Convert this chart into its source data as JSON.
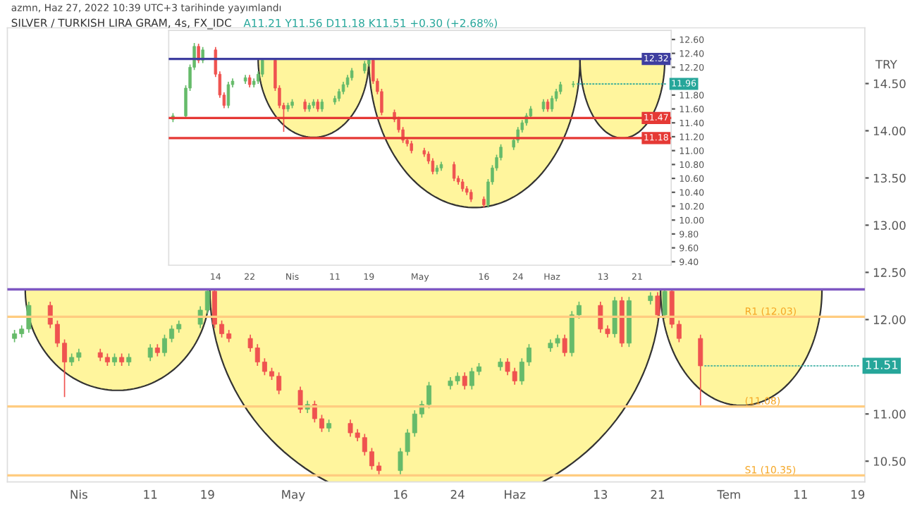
{
  "chart_data": [
    {
      "type": "candlestick",
      "title": "SILVER / TURKISH LIRA GRAM, 4s, FX_IDC",
      "subtitle": "A11.21 Y11.56 D11.18 K11.51 +0.30 (+2.68%)",
      "annotations": [
        "azmn, Haz 27, 2022 10:39 UTC+3 tarihinde yayımlandı",
        {
          "text": "11.96",
          "x": "2022-06-06",
          "y": 11.96
        }
      ],
      "x": [
        "2022-03-04",
        "2022-03-07",
        "2022-03-08",
        "2022-03-09",
        "2022-03-10",
        "2022-03-11",
        "2022-03-14",
        "2022-03-15",
        "2022-03-16",
        "2022-03-17",
        "2022-03-18",
        "2022-03-21",
        "2022-03-22",
        "2022-03-23",
        "2022-03-24",
        "2022-03-25",
        "2022-03-28",
        "2022-03-29",
        "2022-03-30",
        "2022-03-31",
        "2022-04-01",
        "2022-04-04",
        "2022-04-05",
        "2022-04-06",
        "2022-04-07",
        "2022-04-08",
        "2022-04-11",
        "2022-04-12",
        "2022-04-13",
        "2022-04-14",
        "2022-04-15",
        "2022-04-18",
        "2022-04-19",
        "2022-04-20",
        "2022-04-21",
        "2022-04-22",
        "2022-04-25",
        "2022-04-26",
        "2022-04-27",
        "2022-04-28",
        "2022-04-29",
        "2022-05-02",
        "2022-05-03",
        "2022-05-04",
        "2022-05-05",
        "2022-05-06",
        "2022-05-09",
        "2022-05-10",
        "2022-05-11",
        "2022-05-12",
        "2022-05-13",
        "2022-05-16",
        "2022-05-17",
        "2022-05-18",
        "2022-05-19",
        "2022-05-20",
        "2022-05-23",
        "2022-05-24",
        "2022-05-25",
        "2022-05-26",
        "2022-05-27",
        "2022-05-30",
        "2022-05-31",
        "2022-06-01",
        "2022-06-02",
        "2022-06-03",
        "2022-06-06"
      ],
      "ohlc": [
        [
          11.45,
          11.54,
          11.41,
          11.5
        ],
        [
          11.5,
          11.94,
          11.46,
          11.9
        ],
        [
          11.9,
          12.24,
          11.86,
          12.2
        ],
        [
          12.2,
          12.55,
          12.16,
          12.5
        ],
        [
          12.5,
          12.54,
          12.26,
          12.3
        ],
        [
          12.3,
          12.49,
          12.26,
          12.45
        ],
        [
          12.45,
          12.49,
          12.06,
          12.1
        ],
        [
          12.1,
          12.14,
          11.76,
          11.8
        ],
        [
          11.8,
          11.84,
          11.61,
          11.65
        ],
        [
          11.65,
          11.99,
          11.61,
          11.95
        ],
        [
          11.95,
          12.04,
          11.91,
          12.0
        ],
        [
          12.0,
          12.09,
          11.96,
          12.05
        ],
        [
          12.05,
          12.09,
          11.91,
          11.95
        ],
        [
          11.95,
          12.04,
          11.91,
          12.0
        ],
        [
          12.0,
          12.14,
          11.96,
          12.1
        ],
        [
          12.1,
          12.32,
          12.06,
          12.3
        ],
        [
          12.3,
          12.32,
          11.86,
          11.9
        ],
        [
          11.9,
          11.94,
          11.61,
          11.65
        ],
        [
          11.65,
          11.69,
          11.27,
          11.6
        ],
        [
          11.6,
          11.69,
          11.56,
          11.65
        ],
        [
          11.65,
          11.74,
          11.61,
          11.7
        ],
        [
          11.7,
          11.74,
          11.56,
          11.6
        ],
        [
          11.6,
          11.69,
          11.56,
          11.65
        ],
        [
          11.65,
          11.74,
          11.61,
          11.7
        ],
        [
          11.7,
          11.74,
          11.56,
          11.6
        ],
        [
          11.6,
          11.74,
          11.56,
          11.7
        ],
        [
          11.7,
          11.79,
          11.66,
          11.75
        ],
        [
          11.75,
          11.89,
          11.71,
          11.85
        ],
        [
          11.85,
          11.99,
          11.81,
          11.95
        ],
        [
          11.95,
          12.09,
          11.91,
          12.05
        ],
        [
          12.05,
          12.19,
          12.01,
          12.15
        ],
        [
          12.15,
          12.29,
          12.11,
          12.25
        ],
        [
          12.25,
          12.32,
          12.21,
          12.3
        ],
        [
          12.3,
          12.32,
          11.96,
          12.0
        ],
        [
          12.0,
          12.04,
          11.81,
          11.85
        ],
        [
          11.85,
          11.89,
          11.51,
          11.55
        ],
        [
          11.55,
          11.59,
          11.41,
          11.45
        ],
        [
          11.45,
          11.49,
          11.26,
          11.3
        ],
        [
          11.3,
          11.34,
          11.11,
          11.15
        ],
        [
          11.15,
          11.19,
          11.06,
          11.1
        ],
        [
          11.1,
          11.14,
          10.96,
          11.0
        ],
        [
          11.0,
          11.04,
          10.91,
          10.95
        ],
        [
          10.95,
          10.99,
          10.81,
          10.85
        ],
        [
          10.85,
          10.89,
          10.66,
          10.7
        ],
        [
          10.7,
          10.79,
          10.66,
          10.75
        ],
        [
          10.75,
          10.84,
          10.71,
          10.8
        ],
        [
          10.8,
          10.84,
          10.56,
          10.6
        ],
        [
          10.6,
          10.64,
          10.51,
          10.55
        ],
        [
          10.55,
          10.59,
          10.41,
          10.45
        ],
        [
          10.45,
          10.49,
          10.36,
          10.4
        ],
        [
          10.4,
          10.44,
          10.26,
          10.3
        ],
        [
          10.3,
          10.34,
          10.18,
          10.22
        ],
        [
          10.22,
          10.59,
          10.18,
          10.55
        ],
        [
          10.55,
          10.79,
          10.51,
          10.75
        ],
        [
          10.75,
          10.94,
          10.71,
          10.9
        ],
        [
          10.9,
          11.09,
          10.86,
          11.05
        ],
        [
          11.05,
          11.19,
          11.01,
          11.15
        ],
        [
          11.15,
          11.34,
          11.11,
          11.3
        ],
        [
          11.3,
          11.44,
          11.26,
          11.4
        ],
        [
          11.4,
          11.54,
          11.36,
          11.5
        ],
        [
          11.5,
          11.64,
          11.46,
          11.6
        ],
        [
          11.6,
          11.74,
          11.56,
          11.7
        ],
        [
          11.7,
          11.74,
          11.56,
          11.6
        ],
        [
          11.6,
          11.79,
          11.56,
          11.75
        ],
        [
          11.75,
          11.89,
          11.71,
          11.85
        ],
        [
          11.85,
          11.99,
          11.81,
          11.95
        ],
        [
          11.95,
          12.0,
          11.91,
          11.96
        ]
      ],
      "xlim": [
        "2022-03-03",
        "2022-06-29"
      ],
      "xticks": [
        {
          "value": "2022-03-14",
          "label": "14"
        },
        {
          "value": "2022-03-22",
          "label": "22"
        },
        {
          "value": "2022-04-01",
          "label": "Nis"
        },
        {
          "value": "2022-04-11",
          "label": "11"
        },
        {
          "value": "2022-04-19",
          "label": "19"
        },
        {
          "value": "2022-05-01",
          "label": "May"
        },
        {
          "value": "2022-05-16",
          "label": "16"
        },
        {
          "value": "2022-05-24",
          "label": "24"
        },
        {
          "value": "2022-06-01",
          "label": "Haz"
        },
        {
          "value": "2022-06-13",
          "label": "13"
        },
        {
          "value": "2022-06-21",
          "label": "21"
        }
      ],
      "ylim": [
        9.35,
        12.73
      ],
      "yticks": [
        {
          "value": 9.4,
          "label": "9.40"
        },
        {
          "value": 9.6,
          "label": "9.60"
        },
        {
          "value": 9.8,
          "label": "9.80"
        },
        {
          "value": 10.0,
          "label": "10.00"
        },
        {
          "value": 10.2,
          "label": "10.20"
        },
        {
          "value": 10.4,
          "label": "10.40"
        },
        {
          "value": 10.6,
          "label": "10.60"
        },
        {
          "value": 10.8,
          "label": "10.80"
        },
        {
          "value": 11.0,
          "label": "11.00"
        },
        {
          "value": 11.2,
          "label": "11.20"
        },
        {
          "value": 11.4,
          "label": "11.40"
        },
        {
          "value": 11.6,
          "label": "11.60"
        },
        {
          "value": 11.8,
          "label": "11.80"
        },
        {
          "value": 12.2,
          "label": "12.20"
        },
        {
          "value": 12.4,
          "label": "12.40"
        },
        {
          "value": 12.6,
          "label": "12.60"
        }
      ],
      "ref_lines": [
        {
          "axis": "y",
          "value": 12.32,
          "label": "12.32",
          "color": "#3f3fa0"
        },
        {
          "axis": "y",
          "value": 11.47,
          "label": "11.47",
          "color": "#e53935"
        },
        {
          "axis": "y",
          "value": 11.18,
          "label": "11.18",
          "color": "#e53935"
        }
      ],
      "grid": false
    },
    {
      "type": "candlestick",
      "ylabel": "TRY",
      "annotations": [
        {
          "text": "11.51",
          "x": "2022-06-27",
          "y": 11.51
        }
      ],
      "x": [
        "2022-03-23",
        "2022-03-24",
        "2022-03-25",
        "2022-03-28",
        "2022-03-29",
        "2022-03-30",
        "2022-03-31",
        "2022-04-01",
        "2022-04-04",
        "2022-04-05",
        "2022-04-06",
        "2022-04-07",
        "2022-04-08",
        "2022-04-11",
        "2022-04-12",
        "2022-04-13",
        "2022-04-14",
        "2022-04-15",
        "2022-04-18",
        "2022-04-19",
        "2022-04-20",
        "2022-04-21",
        "2022-04-22",
        "2022-04-25",
        "2022-04-26",
        "2022-04-27",
        "2022-04-28",
        "2022-04-29",
        "2022-05-02",
        "2022-05-03",
        "2022-05-04",
        "2022-05-05",
        "2022-05-06",
        "2022-05-09",
        "2022-05-10",
        "2022-05-11",
        "2022-05-12",
        "2022-05-13",
        "2022-05-16",
        "2022-05-17",
        "2022-05-18",
        "2022-05-19",
        "2022-05-20",
        "2022-05-23",
        "2022-05-24",
        "2022-05-25",
        "2022-05-26",
        "2022-05-27",
        "2022-05-30",
        "2022-05-31",
        "2022-06-01",
        "2022-06-02",
        "2022-06-03",
        "2022-06-06",
        "2022-06-07",
        "2022-06-08",
        "2022-06-09",
        "2022-06-10",
        "2022-06-13",
        "2022-06-14",
        "2022-06-15",
        "2022-06-16",
        "2022-06-17",
        "2022-06-20",
        "2022-06-21",
        "2022-06-22",
        "2022-06-23",
        "2022-06-24",
        "2022-06-27"
      ],
      "ohlc": [
        [
          11.8,
          11.89,
          11.76,
          11.85
        ],
        [
          11.85,
          11.94,
          11.81,
          11.9
        ],
        [
          11.9,
          12.19,
          11.86,
          12.15
        ],
        [
          12.15,
          12.19,
          11.91,
          11.95
        ],
        [
          11.95,
          11.99,
          11.71,
          11.75
        ],
        [
          11.75,
          11.79,
          11.18,
          11.55
        ],
        [
          11.55,
          11.64,
          11.51,
          11.6
        ],
        [
          11.6,
          11.69,
          11.56,
          11.65
        ],
        [
          11.65,
          11.69,
          11.56,
          11.6
        ],
        [
          11.6,
          11.64,
          11.51,
          11.55
        ],
        [
          11.55,
          11.64,
          11.51,
          11.6
        ],
        [
          11.6,
          11.64,
          11.51,
          11.55
        ],
        [
          11.55,
          11.64,
          11.51,
          11.6
        ],
        [
          11.6,
          11.74,
          11.56,
          11.7
        ],
        [
          11.7,
          11.74,
          11.61,
          11.65
        ],
        [
          11.65,
          11.84,
          11.61,
          11.8
        ],
        [
          11.8,
          11.94,
          11.76,
          11.9
        ],
        [
          11.9,
          11.99,
          11.86,
          11.95
        ],
        [
          11.95,
          12.14,
          11.91,
          12.1
        ],
        [
          12.1,
          12.33,
          12.06,
          12.3
        ],
        [
          12.3,
          12.32,
          11.91,
          11.95
        ],
        [
          11.95,
          11.99,
          11.81,
          11.85
        ],
        [
          11.85,
          11.89,
          11.76,
          11.8
        ],
        [
          11.8,
          11.84,
          11.66,
          11.7
        ],
        [
          11.7,
          11.74,
          11.51,
          11.55
        ],
        [
          11.55,
          11.59,
          11.41,
          11.45
        ],
        [
          11.45,
          11.49,
          11.36,
          11.4
        ],
        [
          11.4,
          11.44,
          11.21,
          11.25
        ],
        [
          11.25,
          11.29,
          11.01,
          11.05
        ],
        [
          11.05,
          11.14,
          11.01,
          11.1
        ],
        [
          11.1,
          11.14,
          10.91,
          10.95
        ],
        [
          10.95,
          10.99,
          10.81,
          10.85
        ],
        [
          10.85,
          10.94,
          10.81,
          10.9
        ],
        [
          10.9,
          10.94,
          10.76,
          10.8
        ],
        [
          10.8,
          10.84,
          10.71,
          10.75
        ],
        [
          10.75,
          10.79,
          10.56,
          10.6
        ],
        [
          10.6,
          10.64,
          10.41,
          10.45
        ],
        [
          10.45,
          10.49,
          10.35,
          10.4
        ],
        [
          10.4,
          10.64,
          10.36,
          10.6
        ],
        [
          10.6,
          10.84,
          10.56,
          10.8
        ],
        [
          10.8,
          11.04,
          10.76,
          11.0
        ],
        [
          11.0,
          11.14,
          10.96,
          11.1
        ],
        [
          11.1,
          11.34,
          11.06,
          11.3
        ],
        [
          11.3,
          11.39,
          11.26,
          11.35
        ],
        [
          11.35,
          11.44,
          11.31,
          11.4
        ],
        [
          11.4,
          11.44,
          11.26,
          11.3
        ],
        [
          11.3,
          11.49,
          11.26,
          11.45
        ],
        [
          11.45,
          11.54,
          11.41,
          11.5
        ],
        [
          11.5,
          11.59,
          11.46,
          11.55
        ],
        [
          11.55,
          11.59,
          11.41,
          11.45
        ],
        [
          11.45,
          11.49,
          11.31,
          11.35
        ],
        [
          11.35,
          11.59,
          11.31,
          11.55
        ],
        [
          11.55,
          11.74,
          11.51,
          11.7
        ],
        [
          11.7,
          11.79,
          11.66,
          11.75
        ],
        [
          11.75,
          11.84,
          11.71,
          11.8
        ],
        [
          11.8,
          11.84,
          11.61,
          11.65
        ],
        [
          11.65,
          12.09,
          11.61,
          12.05
        ],
        [
          12.05,
          12.19,
          12.01,
          12.15
        ],
        [
          12.15,
          12.19,
          11.86,
          11.9
        ],
        [
          11.9,
          11.94,
          11.81,
          11.85
        ],
        [
          11.85,
          12.24,
          11.81,
          12.2
        ],
        [
          12.2,
          12.24,
          11.71,
          11.75
        ],
        [
          11.75,
          12.24,
          11.71,
          12.2
        ],
        [
          12.2,
          12.29,
          12.16,
          12.25
        ],
        [
          12.25,
          12.29,
          12.01,
          12.05
        ],
        [
          12.05,
          12.32,
          12.01,
          12.3
        ],
        [
          12.3,
          12.32,
          11.91,
          11.95
        ],
        [
          11.95,
          11.99,
          11.76,
          11.8
        ],
        [
          11.8,
          11.84,
          11.09,
          11.51
        ]
      ],
      "xlim": [
        "2022-03-22",
        "2022-07-20"
      ],
      "xticks": [
        {
          "value": "2022-04-01",
          "label": "Nis"
        },
        {
          "value": "2022-04-11",
          "label": "11"
        },
        {
          "value": "2022-04-19",
          "label": "19"
        },
        {
          "value": "2022-05-01",
          "label": "May"
        },
        {
          "value": "2022-05-16",
          "label": "16"
        },
        {
          "value": "2022-05-24",
          "label": "24"
        },
        {
          "value": "2022-06-01",
          "label": "Haz"
        },
        {
          "value": "2022-06-13",
          "label": "13"
        },
        {
          "value": "2022-06-21",
          "label": "21"
        },
        {
          "value": "2022-07-01",
          "label": "Tem"
        },
        {
          "value": "2022-07-11",
          "label": "11"
        },
        {
          "value": "2022-07-19",
          "label": "19"
        }
      ],
      "ylim": [
        10.28,
        15.09
      ],
      "yticks": [
        {
          "value": 10.5,
          "label": "10.50"
        },
        {
          "value": 11.0,
          "label": "11.00"
        },
        {
          "value": 12.0,
          "label": "12.00"
        },
        {
          "value": 12.5,
          "label": "12.50"
        },
        {
          "value": 13.0,
          "label": "13.00"
        },
        {
          "value": 13.5,
          "label": "13.50"
        },
        {
          "value": 14.0,
          "label": "14.00"
        },
        {
          "value": 14.5,
          "label": "14.50"
        }
      ],
      "ref_lines": [
        {
          "axis": "y",
          "value": 12.32,
          "color": "#7e57c2"
        },
        {
          "axis": "y",
          "value": 12.03,
          "label": "R1 (12.03)",
          "color": "#ffcc80"
        },
        {
          "axis": "y",
          "value": 11.08,
          "label": "(11.08)",
          "color": "#ffcc80"
        },
        {
          "axis": "y",
          "value": 10.35,
          "label": "S1 (10.35)",
          "color": "#ffcc80"
        }
      ],
      "grid": false
    }
  ]
}
